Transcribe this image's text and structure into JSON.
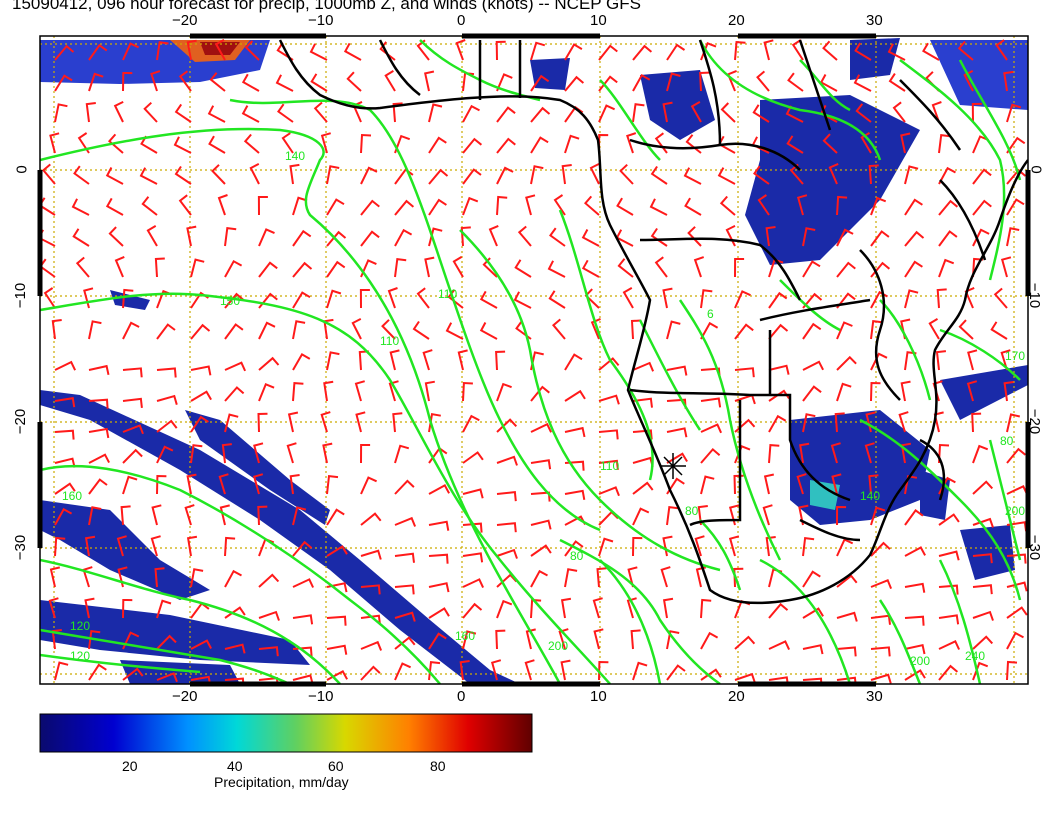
{
  "title": "15090412, 096 hour forecast for precip, 1000mb Z, and winds (knots) -- NCEP GFS",
  "map": {
    "lon_ticks": [
      "−20",
      "−10",
      "0",
      "10",
      "20",
      "30"
    ],
    "lat_ticks": [
      "0",
      "−10",
      "−20",
      "−30"
    ],
    "contour_labels": [
      "140",
      "150",
      "110",
      "110",
      "160",
      "120",
      "120",
      "110",
      "80",
      "80",
      "200",
      "160",
      "200",
      "240",
      "200",
      "140",
      "170",
      "80",
      "6"
    ],
    "colors": {
      "contour": "#22e622",
      "wind_barbs": "#ff1a1a",
      "precip_low": "#1a1aa6",
      "precip_high": "#7a0000",
      "coastline": "#000000",
      "grid": "#ccaa00"
    }
  },
  "colorbar": {
    "labels": [
      "20",
      "40",
      "60",
      "80"
    ],
    "title": "Precipitation, mm/day"
  }
}
